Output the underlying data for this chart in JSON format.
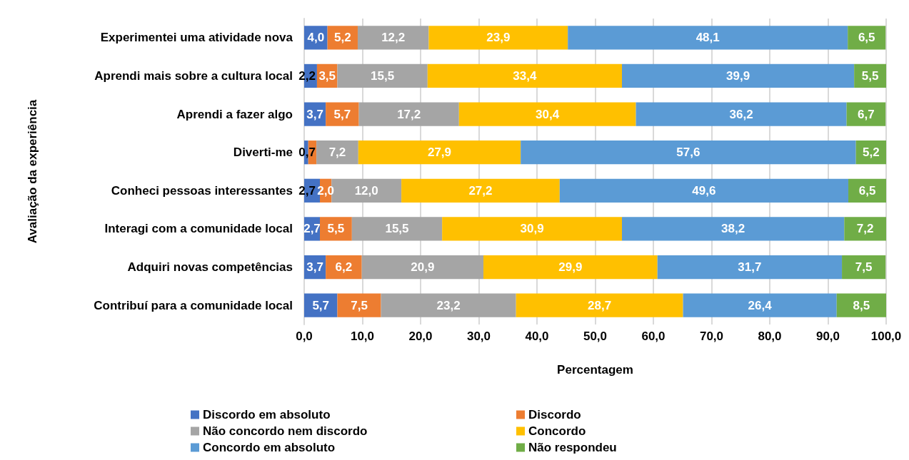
{
  "chart_data": {
    "type": "bar",
    "orientation": "horizontal",
    "stacked": true,
    "xlabel": "Percentagem",
    "ylabel": "Avaliação da experiência",
    "categories": [
      "Experimentei uma atividade nova",
      "Aprendi mais sobre a cultura local",
      "Aprendi a fazer algo",
      "Diverti-me",
      "Conheci pessoas interessantes",
      "Interagi com a comunidade local",
      "Adquiri novas competências",
      "Contribuí para a comunidade local"
    ],
    "series": [
      {
        "name": "Discordo em absoluto",
        "color": "#4472c4",
        "values": [
          4.0,
          2.2,
          3.7,
          0.7,
          2.7,
          2.7,
          3.7,
          5.7
        ],
        "value_labels": [
          "4,0",
          "2,2",
          "3,7",
          "0,7",
          "2,7",
          "2,7",
          "3,7",
          "5,7"
        ]
      },
      {
        "name": "Discordo",
        "color": "#ed7d31",
        "values": [
          5.2,
          3.5,
          5.7,
          1.4,
          2.0,
          5.5,
          6.2,
          7.5
        ],
        "value_labels": [
          "5,2",
          "3,5",
          "5,7",
          null,
          "2,0",
          "5,5",
          "6,2",
          "7,5"
        ]
      },
      {
        "name": "Não concordo nem discordo",
        "color": "#a5a5a5",
        "values": [
          12.2,
          15.5,
          17.2,
          7.2,
          12.0,
          15.5,
          20.9,
          23.2
        ],
        "value_labels": [
          "12,2",
          "15,5",
          "17,2",
          "7,2",
          "12,0",
          "15,5",
          "20,9",
          "23,2"
        ]
      },
      {
        "name": "Concordo",
        "color": "#ffc000",
        "values": [
          23.9,
          33.4,
          30.4,
          27.9,
          27.2,
          30.9,
          29.9,
          28.7
        ],
        "value_labels": [
          "23,9",
          "33,4",
          "30,4",
          "27,9",
          "27,2",
          "30,9",
          "29,9",
          "28,7"
        ]
      },
      {
        "name": "Concordo em absoluto",
        "color": "#5b9bd5",
        "values": [
          48.1,
          39.9,
          36.2,
          57.6,
          49.6,
          38.2,
          31.7,
          26.4
        ],
        "value_labels": [
          "48,1",
          "39,9",
          "36,2",
          "57,6",
          "49,6",
          "38,2",
          "31,7",
          "26,4"
        ]
      },
      {
        "name": "Não respondeu",
        "color": "#70ad47",
        "values": [
          6.5,
          5.5,
          6.7,
          5.2,
          6.5,
          7.2,
          7.5,
          8.5
        ],
        "value_labels": [
          "6,5",
          "5,5",
          "6,7",
          "5,2",
          "6,5",
          "7,2",
          "7,5",
          "8,5"
        ]
      }
    ],
    "xlim": [
      0,
      100
    ],
    "xticks": [
      {
        "value": 0,
        "label": "0,0"
      },
      {
        "value": 10,
        "label": "10,0"
      },
      {
        "value": 20,
        "label": "20,0"
      },
      {
        "value": 30,
        "label": "30,0"
      },
      {
        "value": 40,
        "label": "40,0"
      },
      {
        "value": 50,
        "label": "50,0"
      },
      {
        "value": 60,
        "label": "60,0"
      },
      {
        "value": 70,
        "label": "70,0"
      },
      {
        "value": 80,
        "label": "80,0"
      },
      {
        "value": 90,
        "label": "90,0"
      },
      {
        "value": 100,
        "label": "100,0"
      }
    ],
    "grid": "x",
    "legend": "bottom"
  }
}
